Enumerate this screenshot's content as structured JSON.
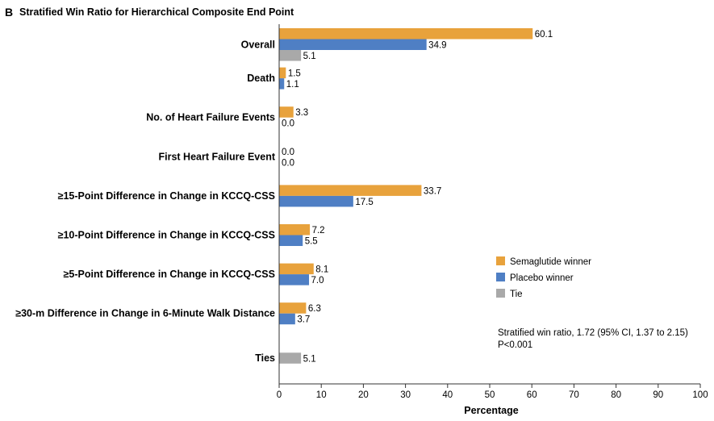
{
  "panel_letter": "B",
  "chart_data": {
    "type": "bar",
    "orientation": "horizontal",
    "title": "Stratified Win Ratio for Hierarchical Composite End Point",
    "xlabel": "Percentage",
    "ylabel": "",
    "xlim": [
      0,
      100
    ],
    "xticks": [
      0,
      10,
      20,
      30,
      40,
      50,
      60,
      70,
      80,
      90,
      100
    ],
    "categories": [
      "Overall",
      "Death",
      "No. of Heart Failure Events",
      "First Heart Failure Event",
      "≥15-Point Difference in Change in KCCQ-CSS",
      "≥10-Point Difference in Change in KCCQ-CSS",
      "≥5-Point Difference in Change in KCCQ-CSS",
      "≥30-m Difference in Change in 6-Minute Walk Distance",
      "Ties"
    ],
    "series": [
      {
        "name": "Semaglutide winner",
        "color": "#e8a23c",
        "values": [
          60.1,
          1.5,
          3.3,
          0.0,
          33.7,
          7.2,
          8.1,
          6.3,
          null
        ],
        "labels": [
          "60.1",
          "1.5",
          "3.3",
          "0.0",
          "33.7",
          "7.2",
          "8.1",
          "6.3",
          null
        ]
      },
      {
        "name": "Placebo winner",
        "color": "#4f7fc4",
        "values": [
          34.9,
          1.1,
          0.0,
          0.0,
          17.5,
          5.5,
          7.0,
          3.7,
          null
        ],
        "labels": [
          "34.9",
          "1.1",
          "0.0",
          "0.0",
          "17.5",
          "5.5",
          "7.0",
          "3.7",
          null
        ]
      },
      {
        "name": "Tie",
        "color": "#a9a9a9",
        "values": [
          5.1,
          null,
          null,
          null,
          null,
          null,
          null,
          null,
          5.1
        ],
        "labels": [
          "5.1",
          null,
          null,
          null,
          null,
          null,
          null,
          null,
          "5.1"
        ]
      }
    ],
    "legend_position": "right",
    "grid": false,
    "annotation": [
      "Stratified win ratio, 1.72 (95% CI, 1.37 to 2.15)",
      "P<0.001"
    ]
  }
}
